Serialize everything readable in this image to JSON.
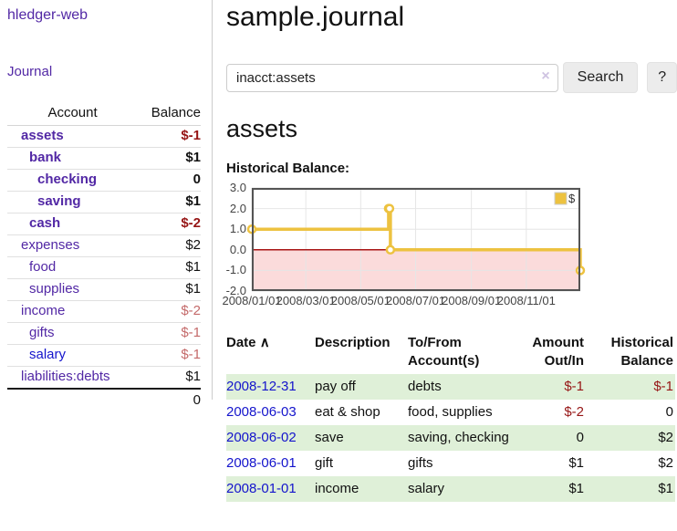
{
  "colors": {
    "link_purple": "#5228a5",
    "link_blue": "#1414cc",
    "negative_strong": "#961515",
    "negative_soft": "#c46a6a",
    "row_stripe_green": "#dff0d8",
    "chart_line": "#edc240",
    "chart_negative_fill": "#fbdbdb",
    "chart_zero_line": "#a81414",
    "chart_grid": "#e6e6e6",
    "chart_border": "#545454"
  },
  "sidebar": {
    "brand": "hledger-web",
    "journal_link": "Journal",
    "accounts_table": {
      "headers": {
        "account": "Account",
        "balance": "Balance"
      },
      "rows": [
        {
          "name": "assets",
          "depth": 1,
          "balance": "$-1",
          "bold": true
        },
        {
          "name": "bank",
          "depth": 2,
          "balance": "$1",
          "bold": true
        },
        {
          "name": "checking",
          "depth": 3,
          "balance": "0",
          "bold": true
        },
        {
          "name": "saving",
          "depth": 3,
          "balance": "$1",
          "bold": true
        },
        {
          "name": "cash",
          "depth": 2,
          "balance": "$-2",
          "bold": true
        },
        {
          "name": "expenses",
          "depth": 1,
          "balance": "$2",
          "bold": false
        },
        {
          "name": "food",
          "depth": 2,
          "balance": "$1",
          "bold": false
        },
        {
          "name": "supplies",
          "depth": 2,
          "balance": "$1",
          "bold": false
        },
        {
          "name": "income",
          "depth": 1,
          "balance": "$-2",
          "bold": false
        },
        {
          "name": "gifts",
          "depth": 2,
          "balance": "$-1",
          "bold": false
        },
        {
          "name": "salary",
          "depth": 2,
          "balance": "$-1",
          "bold": false,
          "unvisited": true
        },
        {
          "name": "liabilities:debts",
          "depth": 1,
          "balance": "$1",
          "bold": false
        }
      ],
      "total": "0"
    }
  },
  "main": {
    "title": "sample.journal",
    "search": {
      "value": "inacct:assets",
      "clear_icon": "×",
      "button_label": "Search",
      "help_label": "?"
    },
    "account_heading": "assets",
    "chart_label": "Historical Balance:"
  },
  "chart_data": {
    "type": "line",
    "style": "step",
    "title": "Historical Balance",
    "series": [
      {
        "name": "$",
        "points": [
          [
            "2008-01-01",
            1
          ],
          [
            "2008-06-01",
            2
          ],
          [
            "2008-06-02",
            2
          ],
          [
            "2008-06-03",
            0
          ],
          [
            "2008-12-31",
            -1
          ]
        ]
      }
    ],
    "xlim": [
      "2008-01-01",
      "2008-12-31"
    ],
    "ylim": [
      -2,
      3
    ],
    "yticks": [
      3.0,
      2.0,
      1.0,
      0.0,
      -1.0,
      -2.0
    ],
    "ytick_labels": [
      "3.0",
      "2.0",
      "1.0",
      "0.0",
      "-1.0",
      "-2.0"
    ],
    "xticks": [
      "2008-01-01",
      "2008-03-01",
      "2008-05-01",
      "2008-07-01",
      "2008-09-01",
      "2008-11-01"
    ],
    "xtick_labels": [
      "2008/01/01",
      "2008/03/01",
      "2008/05/01",
      "2008/07/01",
      "2008/09/01",
      "2008/11/01"
    ],
    "legend": {
      "position": "top-right",
      "entries": [
        "$"
      ]
    },
    "grid": true,
    "negative_region_shaded": true,
    "zero_line": true
  },
  "register": {
    "headers": {
      "date": {
        "label": "Date",
        "sort_icon": "∧"
      },
      "description": {
        "line1": "Description"
      },
      "tofrom": {
        "line1": "To/From",
        "line2": "Account(s)"
      },
      "amount": {
        "line1": "Amount",
        "line2": "Out/In"
      },
      "balance": {
        "line1": "Historical",
        "line2": "Balance"
      }
    },
    "rows": [
      {
        "date": "2008-12-31",
        "description": "pay off",
        "accounts": "debts",
        "amount": "$-1",
        "balance": "$-1"
      },
      {
        "date": "2008-06-03",
        "description": "eat & shop",
        "accounts": "food, supplies",
        "amount": "$-2",
        "balance": "0"
      },
      {
        "date": "2008-06-02",
        "description": "save",
        "accounts": "saving, checking",
        "amount": "0",
        "balance": "$2"
      },
      {
        "date": "2008-06-01",
        "description": "gift",
        "accounts": "gifts",
        "amount": "$1",
        "balance": "$2"
      },
      {
        "date": "2008-01-01",
        "description": "income",
        "accounts": "salary",
        "amount": "$1",
        "balance": "$1"
      }
    ]
  }
}
